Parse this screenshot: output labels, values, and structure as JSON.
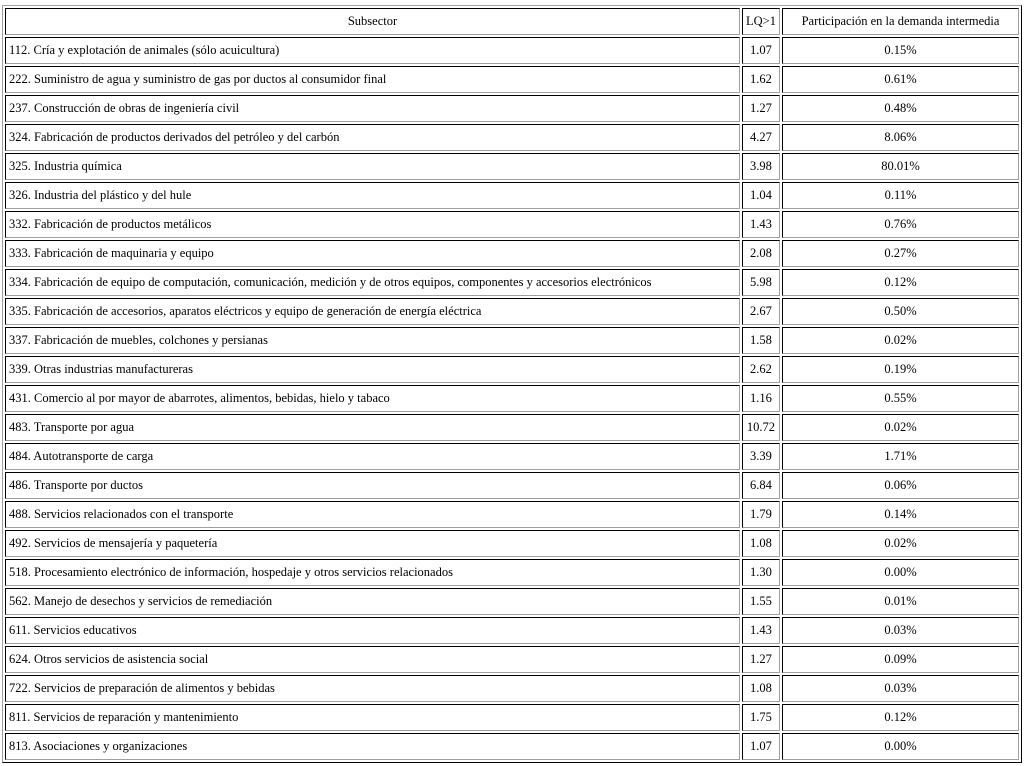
{
  "table": {
    "headers": [
      "Subsector",
      "LQ>1",
      "Participación en la demanda intermedia"
    ],
    "rows": [
      [
        "112. Cría y explotación de animales (sólo acuicultura)",
        "1.07",
        "0.15%"
      ],
      [
        "222. Suministro de agua y suministro de gas por ductos al consumidor final",
        "1.62",
        "0.61%"
      ],
      [
        "237. Construcción de obras de ingeniería civil",
        "1.27",
        "0.48%"
      ],
      [
        "324. Fabricación de productos derivados del petróleo y del carbón",
        "4.27",
        "8.06%"
      ],
      [
        "325. Industria química",
        "3.98",
        "80.01%"
      ],
      [
        "326. Industria del plástico y del hule",
        "1.04",
        "0.11%"
      ],
      [
        "332. Fabricación de productos metálicos",
        "1.43",
        "0.76%"
      ],
      [
        "333. Fabricación de maquinaria y equipo",
        "2.08",
        "0.27%"
      ],
      [
        "334. Fabricación de equipo de computación, comunicación, medición y de otros equipos, componentes y accesorios electrónicos",
        "5.98",
        "0.12%"
      ],
      [
        "335. Fabricación de accesorios, aparatos eléctricos y equipo de generación de energía eléctrica",
        "2.67",
        "0.50%"
      ],
      [
        "337. Fabricación de muebles, colchones y persianas",
        "1.58",
        "0.02%"
      ],
      [
        "339. Otras industrias manufactureras",
        "2.62",
        "0.19%"
      ],
      [
        "431. Comercio al por mayor de abarrotes, alimentos, bebidas, hielo y tabaco",
        "1.16",
        "0.55%"
      ],
      [
        "483. Transporte por agua",
        "10.72",
        "0.02%"
      ],
      [
        "484. Autotransporte de carga",
        "3.39",
        "1.71%"
      ],
      [
        "486. Transporte por ductos",
        "6.84",
        "0.06%"
      ],
      [
        "488. Servicios relacionados con el transporte",
        "1.79",
        "0.14%"
      ],
      [
        "492. Servicios de mensajería y paquetería",
        "1.08",
        "0.02%"
      ],
      [
        "518. Procesamiento electrónico de información, hospedaje y otros servicios relacionados",
        "1.30",
        "0.00%"
      ],
      [
        "562. Manejo de desechos y servicios de remediación",
        "1.55",
        "0.01%"
      ],
      [
        "611. Servicios educativos",
        "1.43",
        "0.03%"
      ],
      [
        "624. Otros servicios de asistencia social",
        "1.27",
        "0.09%"
      ],
      [
        "722. Servicios de preparación de alimentos y bebidas",
        "1.08",
        "0.03%"
      ],
      [
        "811. Servicios de reparación y mantenimiento",
        "1.75",
        "0.12%"
      ],
      [
        "813. Asociaciones y organizaciones",
        "1.07",
        "0.00%"
      ]
    ]
  }
}
